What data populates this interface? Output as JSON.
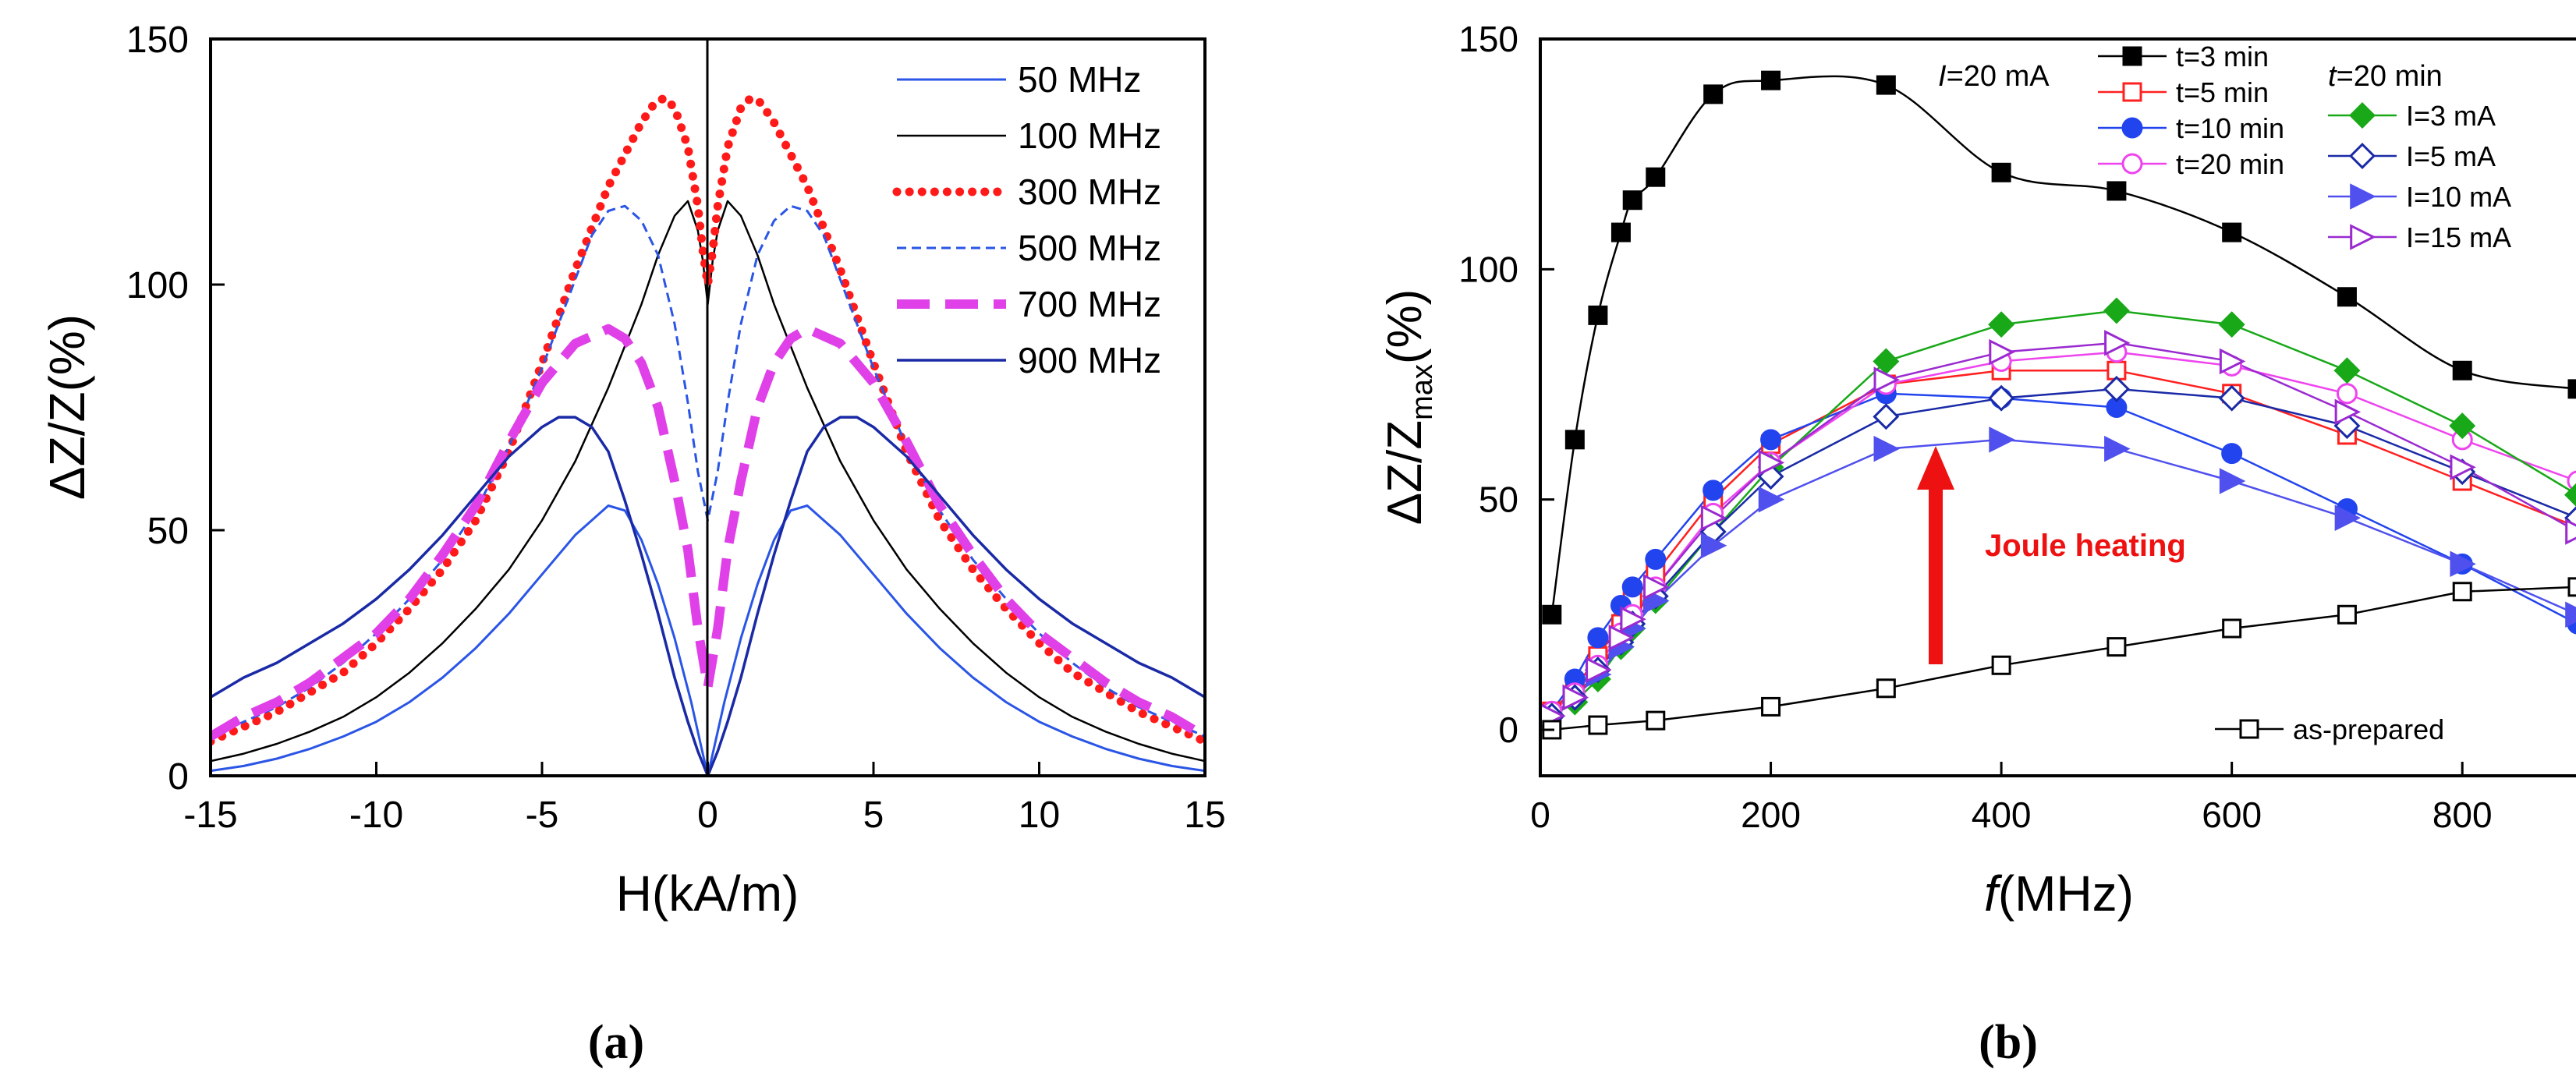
{
  "chart_data": [
    {
      "panel": "a",
      "caption": "(a)",
      "type": "line",
      "xlabel": "H(kA/m)",
      "ylabel": "ΔZ/Z(%)",
      "xlim": [
        -15,
        15
      ],
      "ylim": [
        0,
        150
      ],
      "xticks": [
        -15,
        -10,
        -5,
        0,
        5,
        10,
        15
      ],
      "yticks": [
        0,
        50,
        100,
        150
      ],
      "legend_position": "top-right",
      "series": [
        {
          "name": "50 MHz",
          "color": "#2a55e6",
          "style": "solid",
          "width": 3,
          "points": [
            [
              0,
              0
            ],
            [
              0.2,
              6
            ],
            [
              0.5,
              15
            ],
            [
              1,
              28
            ],
            [
              1.5,
              39
            ],
            [
              2,
              48
            ],
            [
              2.5,
              54
            ],
            [
              3,
              55
            ],
            [
              4,
              49
            ],
            [
              5,
              41
            ],
            [
              6,
              33
            ],
            [
              7,
              26
            ],
            [
              8,
              20
            ],
            [
              9,
              15
            ],
            [
              10,
              11
            ],
            [
              11,
              8
            ],
            [
              12,
              5.5
            ],
            [
              13,
              3.5
            ],
            [
              14,
              2
            ],
            [
              15,
              1
            ]
          ]
        },
        {
          "name": "100 MHz",
          "color": "#000000",
          "style": "solid",
          "width": 2.5,
          "points": [
            [
              0,
              96
            ],
            [
              0.15,
              105
            ],
            [
              0.3,
              111
            ],
            [
              0.6,
              117
            ],
            [
              1,
              114
            ],
            [
              1.5,
              106
            ],
            [
              2,
              96
            ],
            [
              3,
              79
            ],
            [
              4,
              64
            ],
            [
              5,
              52
            ],
            [
              6,
              42
            ],
            [
              7,
              34
            ],
            [
              8,
              27
            ],
            [
              9,
              21
            ],
            [
              10,
              16
            ],
            [
              11,
              12
            ],
            [
              12,
              9
            ],
            [
              13,
              6.5
            ],
            [
              14,
              4.5
            ],
            [
              15,
              3
            ]
          ]
        },
        {
          "name": "300 MHz",
          "color": "#ff1a1a",
          "style": "dot",
          "width": 11,
          "points": [
            [
              0,
              100
            ],
            [
              0.15,
              107
            ],
            [
              0.3,
              116
            ],
            [
              0.6,
              128
            ],
            [
              1,
              136
            ],
            [
              1.3,
              138
            ],
            [
              1.6,
              137
            ],
            [
              2,
              133
            ],
            [
              3,
              120
            ],
            [
              4,
              103
            ],
            [
              5,
              84
            ],
            [
              6,
              66
            ],
            [
              7,
              52
            ],
            [
              8,
              42
            ],
            [
              9,
              34
            ],
            [
              10,
              27
            ],
            [
              11,
              21
            ],
            [
              12,
              17
            ],
            [
              13,
              13
            ],
            [
              14,
              10
            ],
            [
              15,
              7
            ]
          ]
        },
        {
          "name": "500 MHz",
          "color": "#2a55e6",
          "style": "dash",
          "width": 3,
          "points": [
            [
              0,
              52
            ],
            [
              0.3,
              62
            ],
            [
              0.6,
              76
            ],
            [
              1,
              92
            ],
            [
              1.5,
              106
            ],
            [
              2,
              113
            ],
            [
              2.5,
              116
            ],
            [
              3,
              115
            ],
            [
              3.5,
              110
            ],
            [
              4,
              101
            ],
            [
              5,
              83
            ],
            [
              6,
              67
            ],
            [
              7,
              54
            ],
            [
              8,
              44
            ],
            [
              9,
              36
            ],
            [
              10,
              29
            ],
            [
              11,
              23
            ],
            [
              12,
              18
            ],
            [
              13,
              14
            ],
            [
              14,
              11
            ],
            [
              15,
              8
            ]
          ]
        },
        {
          "name": "700 MHz",
          "color": "#e040e8",
          "style": "longdash",
          "width": 12,
          "points": [
            [
              0,
              18
            ],
            [
              0.3,
              30
            ],
            [
              0.6,
              46
            ],
            [
              1,
              60
            ],
            [
              1.5,
              75
            ],
            [
              2,
              84
            ],
            [
              2.5,
              89
            ],
            [
              3,
              91
            ],
            [
              4,
              88
            ],
            [
              5,
              80
            ],
            [
              6,
              68
            ],
            [
              7,
              55
            ],
            [
              8,
              45
            ],
            [
              9,
              36
            ],
            [
              10,
              29
            ],
            [
              11,
              24
            ],
            [
              12,
              19
            ],
            [
              13,
              15
            ],
            [
              14,
              12
            ],
            [
              15,
              8
            ]
          ]
        },
        {
          "name": "900 MHz",
          "color": "#1a2aa6",
          "style": "solid",
          "width": 3.5,
          "points": [
            [
              0,
              0
            ],
            [
              0.3,
              5
            ],
            [
              0.6,
              11
            ],
            [
              1,
              20
            ],
            [
              1.5,
              33
            ],
            [
              2,
              45
            ],
            [
              2.5,
              56
            ],
            [
              3,
              66
            ],
            [
              3.5,
              71
            ],
            [
              4,
              73
            ],
            [
              4.5,
              73
            ],
            [
              5,
              71
            ],
            [
              6,
              65
            ],
            [
              7,
              57
            ],
            [
              8,
              49
            ],
            [
              9,
              42
            ],
            [
              10,
              36
            ],
            [
              11,
              31
            ],
            [
              12,
              27
            ],
            [
              13,
              23
            ],
            [
              14,
              20
            ],
            [
              15,
              16
            ]
          ]
        }
      ]
    },
    {
      "panel": "b",
      "caption": "(b)",
      "type": "line",
      "xlabel_italic": "f",
      "xlabel_rest": "(MHz)",
      "ylabel_main": "ΔZ/Z",
      "ylabel_sub": "max",
      "ylabel_tail": "(%)",
      "xlim": [
        0,
        900
      ],
      "ylim": [
        -10,
        150
      ],
      "xticks": [
        0,
        200,
        400,
        600,
        800
      ],
      "yticks": [
        0,
        50,
        100,
        150
      ],
      "annotations": {
        "joule": "Joule heating",
        "group1_italic": "I",
        "group1_rest": "=20 mA",
        "group2_italic": "t",
        "group2_rest": "=20 min"
      },
      "series": [
        {
          "name": "t=3 min",
          "color": "#000000",
          "marker": "square",
          "filled": true,
          "smooth": true,
          "x": [
            10,
            30,
            50,
            70,
            80,
            100,
            150,
            200,
            300,
            400,
            500,
            600,
            700,
            800,
            900
          ],
          "y": [
            25,
            63,
            90,
            108,
            115,
            120,
            138,
            141,
            140,
            121,
            117,
            108,
            94,
            78,
            74
          ]
        },
        {
          "name": "t=5 min",
          "color": "#ff2020",
          "marker": "square",
          "filled": false,
          "x": [
            10,
            30,
            50,
            70,
            80,
            100,
            150,
            200,
            300,
            400,
            500,
            600,
            700,
            800,
            900
          ],
          "y": [
            4,
            9,
            16,
            23,
            28,
            34,
            50,
            62,
            75,
            78,
            78,
            73,
            64,
            54,
            44
          ]
        },
        {
          "name": "t=10 min",
          "color": "#2244ee",
          "marker": "circle",
          "filled": true,
          "x": [
            10,
            30,
            50,
            70,
            80,
            100,
            150,
            200,
            300,
            400,
            500,
            600,
            700,
            800,
            900
          ],
          "y": [
            4,
            11,
            20,
            27,
            31,
            37,
            52,
            63,
            73,
            72,
            70,
            60,
            48,
            36,
            23
          ]
        },
        {
          "name": "t=20 min",
          "color": "#ee44ee",
          "marker": "circle",
          "filled": false,
          "x": [
            10,
            30,
            50,
            70,
            80,
            100,
            150,
            200,
            300,
            400,
            500,
            600,
            700,
            800,
            900
          ],
          "y": [
            4,
            8,
            14,
            21,
            25,
            31,
            47,
            58,
            75,
            80,
            82,
            79,
            73,
            63,
            54
          ]
        },
        {
          "name": "I=3 mA",
          "color": "#18a818",
          "marker": "diamond",
          "filled": true,
          "x": [
            10,
            30,
            50,
            70,
            80,
            100,
            150,
            200,
            300,
            400,
            500,
            600,
            700,
            800,
            900
          ],
          "y": [
            3,
            6,
            11,
            18,
            22,
            28,
            43,
            57,
            80,
            88,
            91,
            88,
            78,
            66,
            51
          ]
        },
        {
          "name": "I=5 mA",
          "color": "#1a2aa6",
          "marker": "diamond",
          "filled": false,
          "x": [
            10,
            30,
            50,
            70,
            80,
            100,
            150,
            200,
            300,
            400,
            500,
            600,
            700,
            800,
            900
          ],
          "y": [
            3,
            7,
            13,
            19,
            23,
            29,
            43,
            55,
            68,
            72,
            74,
            72,
            66,
            56,
            46
          ]
        },
        {
          "name": "I=10 mA",
          "color": "#5050ee",
          "marker": "triangle-right",
          "filled": true,
          "x": [
            10,
            30,
            50,
            70,
            80,
            100,
            150,
            200,
            300,
            400,
            500,
            600,
            700,
            800,
            900
          ],
          "y": [
            3,
            7,
            12,
            18,
            22,
            28,
            40,
            50,
            61,
            63,
            61,
            54,
            46,
            36,
            25
          ]
        },
        {
          "name": "I=15 mA",
          "color": "#9a2ad0",
          "marker": "triangle-right",
          "filled": false,
          "x": [
            10,
            30,
            50,
            70,
            80,
            100,
            150,
            200,
            300,
            400,
            500,
            600,
            700,
            800,
            900
          ],
          "y": [
            3,
            7,
            13,
            20,
            24,
            31,
            46,
            58,
            76,
            82,
            84,
            80,
            69,
            57,
            43
          ]
        },
        {
          "name": "as-prepared",
          "color": "#000000",
          "marker": "square",
          "filled": false,
          "x": [
            10,
            50,
            100,
            200,
            300,
            400,
            500,
            600,
            700,
            800,
            900
          ],
          "y": [
            0,
            1,
            2,
            5,
            9,
            14,
            18,
            22,
            25,
            30,
            31
          ]
        }
      ]
    }
  ]
}
